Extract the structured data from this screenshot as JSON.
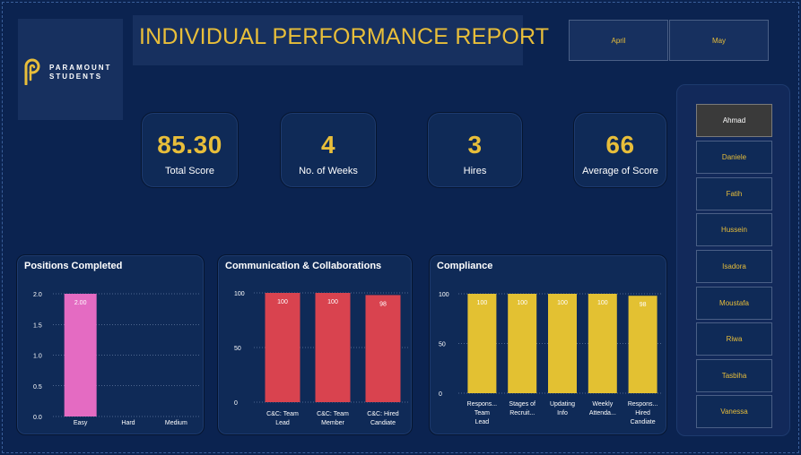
{
  "logo": {
    "line1": "PARAMOUNT",
    "line2": "STUDENTS",
    "icon": "paramount-p-icon"
  },
  "title": "INDIVIDUAL PERFORMANCE REPORT",
  "months": [
    "April",
    "May"
  ],
  "kpis": [
    {
      "value": "85.30",
      "label": "Total Score"
    },
    {
      "value": "4",
      "label": "No. of Weeks"
    },
    {
      "value": "3",
      "label": "Hires"
    },
    {
      "value": "66",
      "label": "Average of Score"
    }
  ],
  "slicer": {
    "items": [
      "Ahmad",
      "Daniele",
      "Fatih",
      "Hussein",
      "Isadora",
      "Moustafa",
      "Riwa",
      "Tasbiha",
      "Vanessa"
    ],
    "selected": "Ahmad"
  },
  "colors": {
    "background": "#0b2350",
    "accent": "#e8be3a",
    "pink": "#e46bc2",
    "red": "#d9434f",
    "yellow": "#e3c132"
  },
  "chart_data": [
    {
      "type": "bar",
      "title": "Positions Completed",
      "categories": [
        "Easy",
        "Hard",
        "Medium"
      ],
      "values": [
        2.0,
        null,
        null
      ],
      "data_labels": [
        "2.00",
        "",
        ""
      ],
      "yticks": [
        "0.0",
        "0.5",
        "1.0",
        "1.5",
        "2.0"
      ],
      "ylim": [
        0,
        2
      ],
      "color": "#e46bc2",
      "grid": true
    },
    {
      "type": "bar",
      "title": "Communication & Collaborations",
      "categories": [
        [
          "C&C: Team",
          "Lead"
        ],
        [
          "C&C: Team",
          "Member"
        ],
        [
          "C&C: Hired",
          "Candiate"
        ]
      ],
      "values": [
        100,
        100,
        98
      ],
      "data_labels": [
        "100",
        "100",
        "98"
      ],
      "yticks": [
        "0",
        "50",
        "100"
      ],
      "ylim": [
        0,
        100
      ],
      "color": "#d9434f",
      "grid": true
    },
    {
      "type": "bar",
      "title": "Compliance",
      "categories": [
        [
          "Respons...",
          "Team",
          "Lead"
        ],
        [
          "Stages of",
          "Recruit..."
        ],
        [
          "Updating",
          "Info"
        ],
        [
          "Weekly",
          "Attenda..."
        ],
        [
          "Respons...",
          "Hired",
          "Candiate"
        ]
      ],
      "values": [
        100,
        100,
        100,
        100,
        98
      ],
      "data_labels": [
        "100",
        "100",
        "100",
        "100",
        "98"
      ],
      "yticks": [
        "0",
        "50",
        "100"
      ],
      "ylim": [
        0,
        100
      ],
      "color": "#e3c132",
      "grid": true
    }
  ]
}
